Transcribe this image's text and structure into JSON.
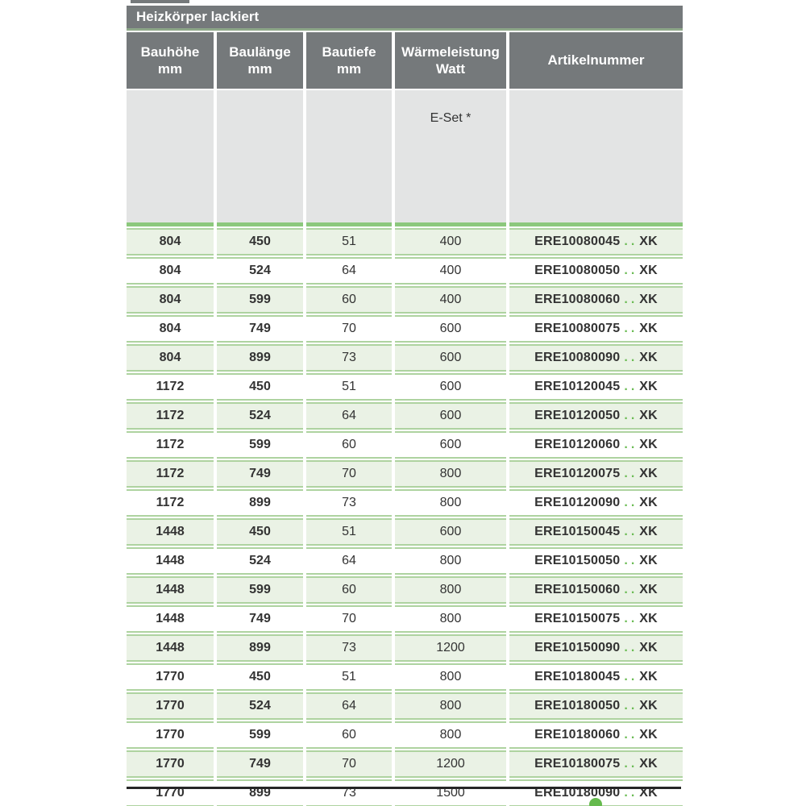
{
  "title": "Heizkörper lackiert",
  "columns": [
    {
      "label": "Bauhöhe",
      "unit": "mm"
    },
    {
      "label": "Baulänge",
      "unit": "mm"
    },
    {
      "label": "Bautiefe",
      "unit": "mm"
    },
    {
      "label": "Wärmeleistung",
      "unit": "Watt"
    },
    {
      "label": "Artikelnummer",
      "unit": ""
    }
  ],
  "subheader": {
    "e_set_label": "E-Set *"
  },
  "artikel_dots": "..",
  "artikel_suffix": "XK",
  "rows": [
    [
      "804",
      "450",
      "51",
      "400",
      "ERE10080045"
    ],
    [
      "804",
      "524",
      "64",
      "400",
      "ERE10080050"
    ],
    [
      "804",
      "599",
      "60",
      "400",
      "ERE10080060"
    ],
    [
      "804",
      "749",
      "70",
      "600",
      "ERE10080075"
    ],
    [
      "804",
      "899",
      "73",
      "600",
      "ERE10080090"
    ],
    [
      "1172",
      "450",
      "51",
      "600",
      "ERE10120045"
    ],
    [
      "1172",
      "524",
      "64",
      "600",
      "ERE10120050"
    ],
    [
      "1172",
      "599",
      "60",
      "600",
      "ERE10120060"
    ],
    [
      "1172",
      "749",
      "70",
      "800",
      "ERE10120075"
    ],
    [
      "1172",
      "899",
      "73",
      "800",
      "ERE10120090"
    ],
    [
      "1448",
      "450",
      "51",
      "600",
      "ERE10150045"
    ],
    [
      "1448",
      "524",
      "64",
      "800",
      "ERE10150050"
    ],
    [
      "1448",
      "599",
      "60",
      "800",
      "ERE10150060"
    ],
    [
      "1448",
      "749",
      "70",
      "800",
      "ERE10150075"
    ],
    [
      "1448",
      "899",
      "73",
      "1200",
      "ERE10150090"
    ],
    [
      "1770",
      "450",
      "51",
      "800",
      "ERE10180045"
    ],
    [
      "1770",
      "524",
      "64",
      "800",
      "ERE10180050"
    ],
    [
      "1770",
      "599",
      "60",
      "800",
      "ERE10180060"
    ],
    [
      "1770",
      "749",
      "70",
      "1200",
      "ERE10180075"
    ],
    [
      "1770",
      "899",
      "73",
      "1500",
      "ERE10180090"
    ]
  ],
  "colors": {
    "header_gray": "#75797b",
    "subheader_gray": "#e3e4e4",
    "row_green": "#eaf2e5",
    "row_border": "#aed3a0",
    "divider_green": "#8cc87d",
    "title_underline": "#8da788",
    "accent_green": "#6cbc55",
    "dot_green": "#65ba4d",
    "bottom_line": "#262626"
  }
}
